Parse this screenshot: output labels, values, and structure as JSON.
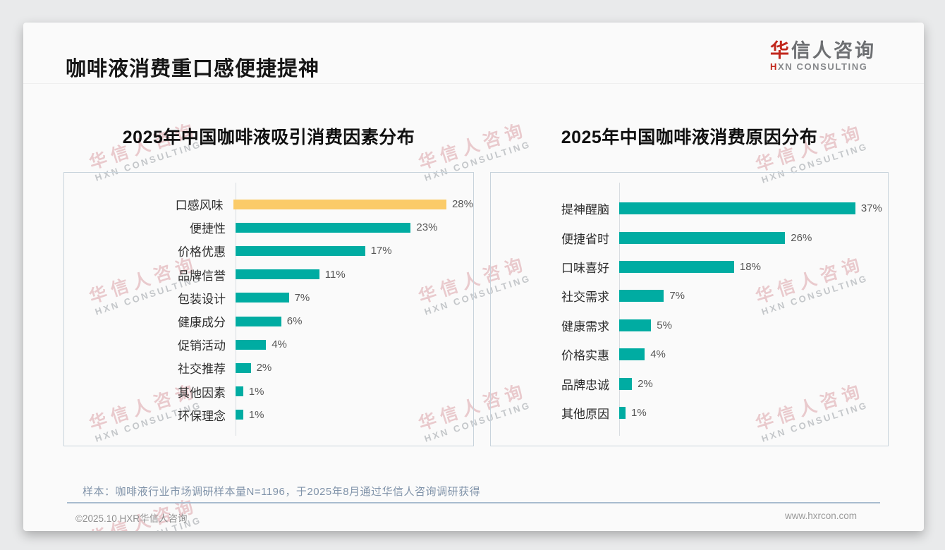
{
  "page": {
    "title": "咖啡液消费重口感便捷提神",
    "logo": {
      "cn_first": "华",
      "cn_rest": "信人咨询",
      "en_first": "H",
      "en_rest": "XN CONSULTING"
    },
    "watermark": {
      "cn": "华信人咨询",
      "en": "HXN CONSULTING"
    },
    "note": "样本：咖啡液行业市场调研样本量N=1196，于2025年8月通过华信人咨询调研获得",
    "footer": {
      "copyright": "©2025.10 HXR华信人咨询",
      "website": "www.hxrcon.com"
    }
  },
  "colors": {
    "teal": "#00aca2",
    "gold": "#fbcb68",
    "logo_red": "#c1271c",
    "note_text": "#8093a9"
  },
  "chart_data": [
    {
      "type": "bar",
      "orientation": "horizontal",
      "title": "2025年中国咖啡液吸引消费因素分布",
      "categories": [
        "口感风味",
        "便捷性",
        "价格优惠",
        "品牌信誉",
        "包装设计",
        "健康成分",
        "促销活动",
        "社交推荐",
        "其他因素",
        "环保理念"
      ],
      "values": [
        28,
        23,
        17,
        11,
        7,
        6,
        4,
        2,
        1,
        1
      ],
      "unit": "%",
      "xlim": [
        0,
        31
      ],
      "grid": false,
      "legend": null,
      "bar_color": "#00aca2",
      "highlight_index": 0,
      "highlight_color": "#fbcb68"
    },
    {
      "type": "bar",
      "orientation": "horizontal",
      "title": "2025年中国咖啡液消费原因分布",
      "categories": [
        "提神醒脑",
        "便捷省时",
        "口味喜好",
        "社交需求",
        "健康需求",
        "价格实惠",
        "品牌忠诚",
        "其他原因"
      ],
      "values": [
        37,
        26,
        18,
        7,
        5,
        4,
        2,
        1
      ],
      "unit": "%",
      "xlim": [
        0,
        42
      ],
      "grid": false,
      "legend": null,
      "bar_color": "#00aca2",
      "highlight_index": null,
      "highlight_color": null
    }
  ]
}
